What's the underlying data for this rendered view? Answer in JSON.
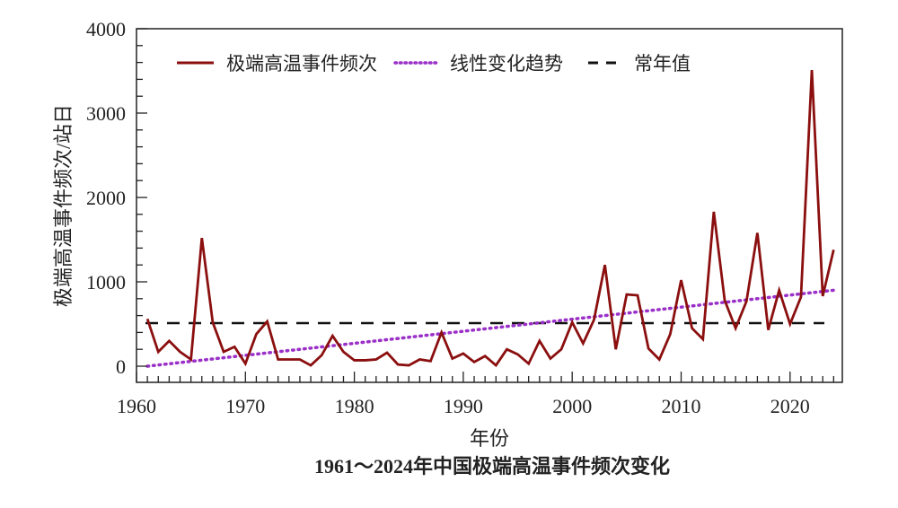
{
  "chart_data": {
    "type": "line",
    "title": "1961～2024年中国极端高温事件频次变化",
    "xlabel": "年份",
    "ylabel": "极端高温事件频次/站日",
    "xlim": [
      1960,
      2025
    ],
    "ylim": [
      -200,
      4000
    ],
    "xticks": [
      1960,
      1970,
      1980,
      1990,
      2000,
      2010,
      2020
    ],
    "yticks": [
      0,
      1000,
      2000,
      3000,
      4000
    ],
    "legend_position": "top",
    "grid": false,
    "x": [
      1961,
      1962,
      1963,
      1964,
      1965,
      1966,
      1967,
      1968,
      1969,
      1970,
      1971,
      1972,
      1973,
      1974,
      1975,
      1976,
      1977,
      1978,
      1979,
      1980,
      1981,
      1982,
      1983,
      1984,
      1985,
      1986,
      1987,
      1988,
      1989,
      1990,
      1991,
      1992,
      1993,
      1994,
      1995,
      1996,
      1997,
      1998,
      1999,
      2000,
      2001,
      2002,
      2003,
      2004,
      2005,
      2006,
      2007,
      2008,
      2009,
      2010,
      2011,
      2012,
      2013,
      2014,
      2015,
      2016,
      2017,
      2018,
      2019,
      2020,
      2021,
      2022,
      2023,
      2024
    ],
    "series": [
      {
        "name": "极端高温事件频次",
        "style": "solid",
        "color": "#8b0f0f",
        "values": [
          560,
          170,
          300,
          170,
          80,
          1520,
          520,
          170,
          230,
          30,
          380,
          530,
          80,
          80,
          80,
          10,
          130,
          360,
          170,
          70,
          70,
          80,
          160,
          20,
          10,
          80,
          60,
          400,
          90,
          150,
          50,
          120,
          10,
          200,
          140,
          30,
          300,
          90,
          200,
          520,
          270,
          550,
          1200,
          200,
          850,
          840,
          210,
          80,
          380,
          1020,
          450,
          320,
          1830,
          780,
          450,
          770,
          1580,
          430,
          900,
          500,
          820,
          3510,
          830,
          1380
        ]
      },
      {
        "name": "线性变化趋势",
        "style": "dotted",
        "color": "#9b30c8",
        "x_range": [
          1961,
          2024
        ],
        "values_at_ends": [
          0,
          900
        ]
      },
      {
        "name": "常年值",
        "style": "dashed",
        "color": "#111111",
        "value": 510
      }
    ]
  }
}
